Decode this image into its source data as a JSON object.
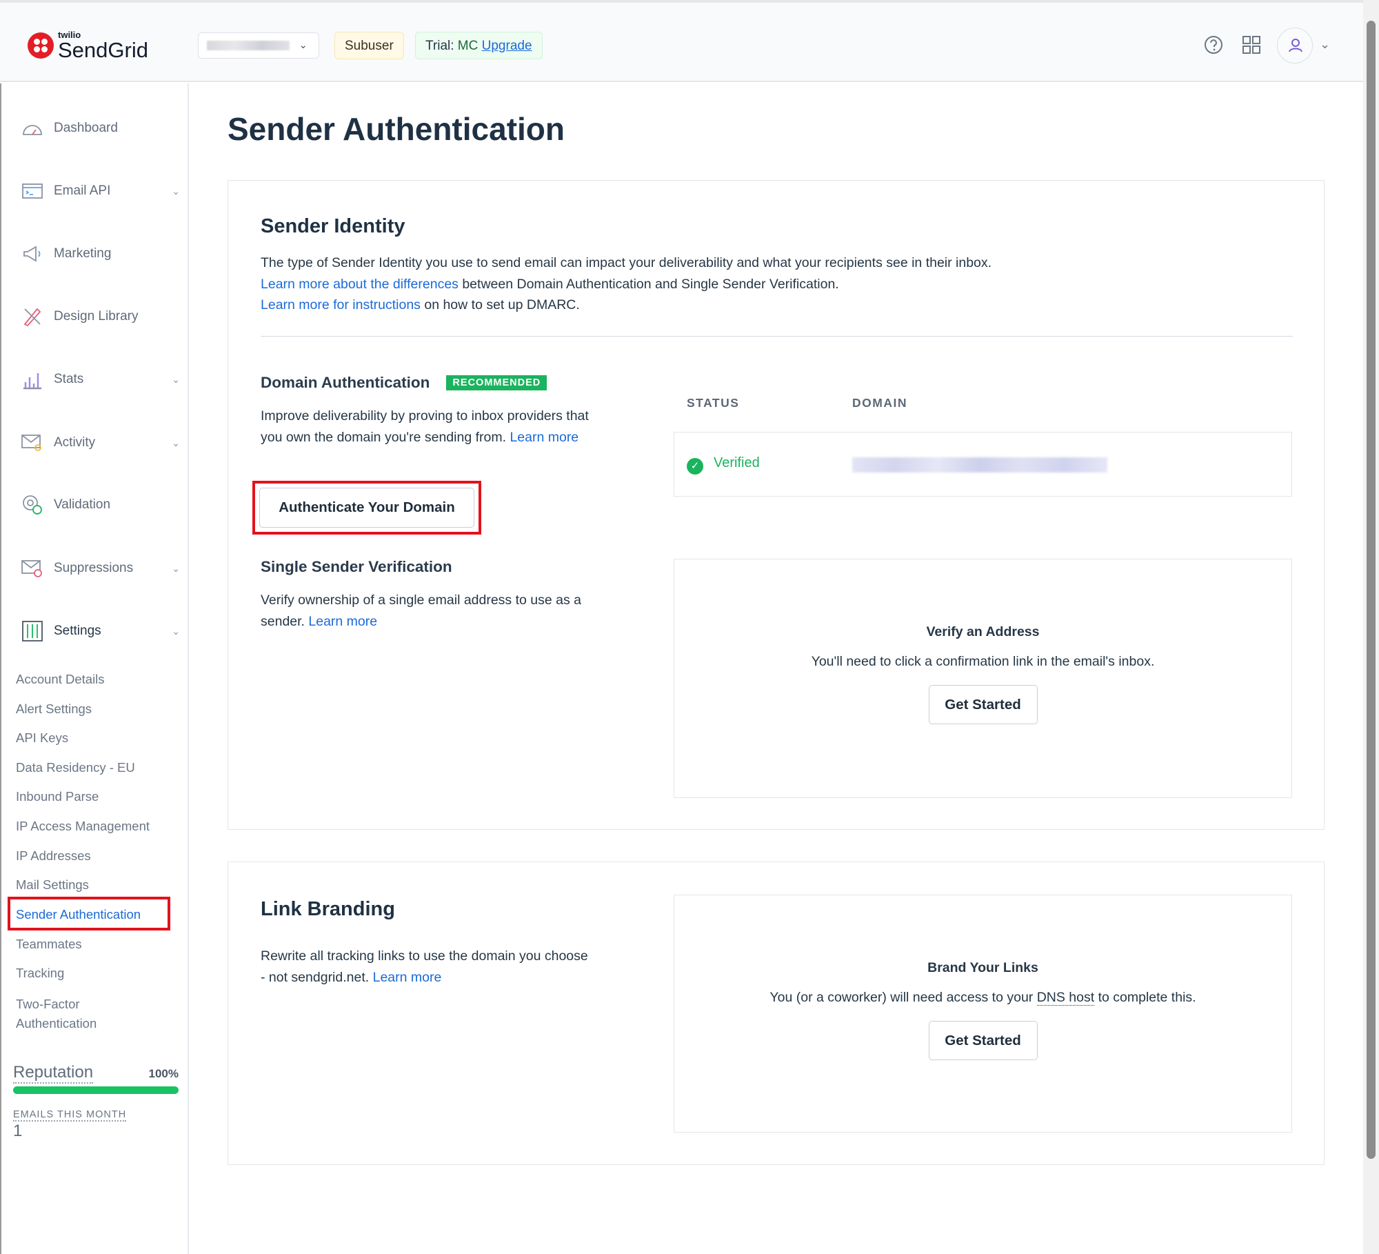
{
  "header": {
    "logo_small": "twilio",
    "logo_main": "SendGrid",
    "subuser_badge": "Subuser",
    "trial_label": "Trial: ",
    "trial_plan": "MC",
    "upgrade_link": "Upgrade",
    "icons": [
      "help-icon",
      "app-grid-icon",
      "user-icon",
      "chevron-down-icon"
    ]
  },
  "sidebar": {
    "items": [
      {
        "label": "Dashboard",
        "icon": "gauge-icon"
      },
      {
        "label": "Email API",
        "icon": "terminal-icon",
        "expandable": true
      },
      {
        "label": "Marketing",
        "icon": "megaphone-icon"
      },
      {
        "label": "Design Library",
        "icon": "design-tools-icon"
      },
      {
        "label": "Stats",
        "icon": "bar-chart-icon",
        "expandable": true
      },
      {
        "label": "Activity",
        "icon": "mail-search-icon",
        "expandable": true
      },
      {
        "label": "Validation",
        "icon": "at-check-icon"
      },
      {
        "label": "Suppressions",
        "icon": "mail-blocked-icon",
        "expandable": true
      },
      {
        "label": "Settings",
        "icon": "sliders-icon",
        "expandable": true
      }
    ],
    "settings_sub": [
      "Account Details",
      "Alert Settings",
      "API Keys",
      "Data Residency - EU",
      "Inbound Parse",
      "IP Access Management",
      "IP Addresses",
      "Mail Settings",
      "Sender Authentication",
      "Teammates",
      "Tracking",
      "Two-Factor Authentication"
    ],
    "active_sub": "Sender Authentication",
    "reputation_label": "Reputation",
    "reputation_value": "100%",
    "reputation_fraction": 1.0,
    "emails_label": "EMAILS THIS MONTH",
    "emails_value": "1"
  },
  "main": {
    "title": "Sender Authentication",
    "identity": {
      "heading": "Sender Identity",
      "line1": "The type of Sender Identity you use to send email can impact your deliverability and what your recipients see in their inbox.",
      "link2": "Learn more about the differences",
      "line2": " between Domain Authentication and Single Sender Verification.",
      "link3": "Learn more for instructions",
      "line3": " on how to set up DMARC."
    },
    "domain": {
      "heading": "Domain Authentication",
      "badge": "RECOMMENDED",
      "text": "Improve deliverability by proving to inbox providers that you own the domain you're sending from. ",
      "link": "Learn more",
      "button": "Authenticate Your Domain",
      "col_status": "STATUS",
      "col_domain": "DOMAIN",
      "status": "Verified",
      "status_color": "#1ab35e"
    },
    "single": {
      "heading": "Single Sender Verification",
      "text": "Verify ownership of a single email address to use as a sender. ",
      "link": "Learn more",
      "box_title": "Verify an Address",
      "box_text": "You'll need to click a confirmation link in the email's inbox.",
      "button": "Get Started"
    },
    "link_branding": {
      "heading": "Link Branding",
      "text": "Rewrite all tracking links to use the domain you choose - not sendgrid.net. ",
      "link": "Learn more",
      "box_title": "Brand Your Links",
      "box_text1": "You (or a coworker) will need access to your ",
      "box_abbr": "DNS host",
      "box_text2": " to complete this.",
      "button": "Get Started"
    }
  }
}
